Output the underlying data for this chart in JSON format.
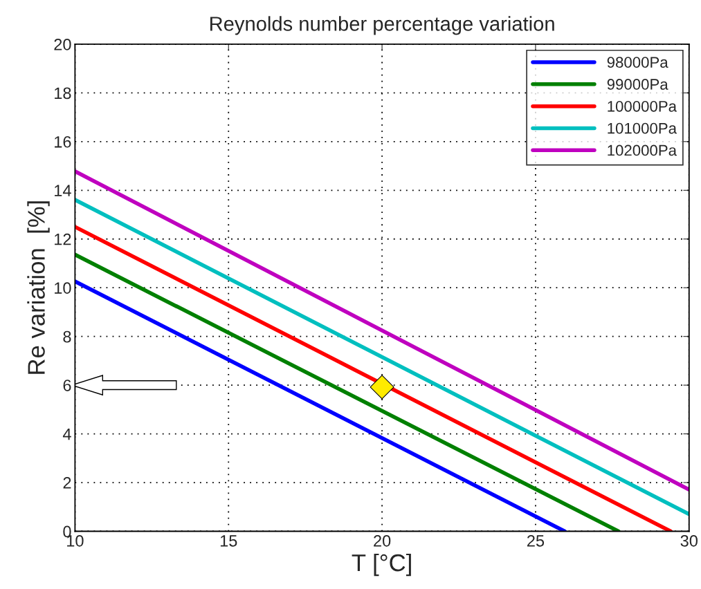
{
  "chart_data": {
    "type": "line",
    "title": "Reynolds number percentage variation",
    "xlabel": "T [°C]",
    "ylabel": "Re variation  [%]",
    "series": [
      {
        "name": "98000Pa",
        "color": "#0000ff",
        "x": [
          10,
          25.95
        ],
        "values": [
          10.26,
          0
        ]
      },
      {
        "name": "99000Pa",
        "color": "#008000",
        "x": [
          10,
          27.7
        ],
        "values": [
          11.36,
          0
        ]
      },
      {
        "name": "100000Pa",
        "color": "#ff0000",
        "x": [
          10,
          29.4
        ],
        "values": [
          12.5,
          0
        ]
      },
      {
        "name": "101000Pa",
        "color": "#00bfbf",
        "x": [
          10,
          30
        ],
        "values": [
          13.61,
          0.7
        ]
      },
      {
        "name": "102000Pa",
        "color": "#bf00bf",
        "x": [
          10,
          30
        ],
        "values": [
          14.78,
          1.71
        ]
      },
      {
        "type": "scatter",
        "color": "#ffeb00",
        "marker": "diamond",
        "x": [
          20
        ],
        "values": [
          5.92
        ]
      }
    ],
    "xlim": [
      10,
      30
    ],
    "xticks": [
      10,
      15,
      20,
      25,
      30
    ],
    "ylim": [
      0,
      20
    ],
    "yticks": [
      0,
      2,
      4,
      6,
      8,
      10,
      12,
      14,
      16,
      18,
      20
    ],
    "grid": true,
    "legend": "top right",
    "marker": "none",
    "line_style": "solid"
  }
}
